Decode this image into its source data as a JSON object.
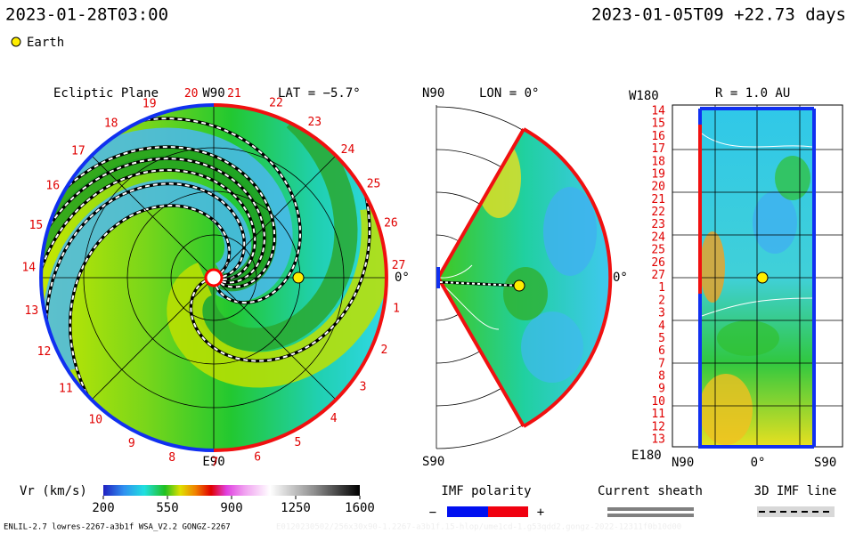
{
  "header": {
    "left": "2023-01-28T03:00",
    "right": "2023-01-05T09 +22.73 days"
  },
  "legend": {
    "earth": "Earth"
  },
  "ecliptic": {
    "title": "Ecliptic Plane",
    "lat": "LAT = −5.7°",
    "top": "W90",
    "bottom": "E90",
    "right": "0°",
    "days": [
      "20",
      "21",
      "22",
      "23",
      "24",
      "25",
      "26",
      "27",
      "1",
      "2",
      "3",
      "4",
      "5",
      "6",
      "7",
      "8",
      "9",
      "10",
      "11",
      "12",
      "13",
      "14",
      "15",
      "16",
      "17",
      "18",
      "19"
    ]
  },
  "meridian": {
    "top": "N90",
    "lon": "LON = 0°",
    "bottom": "S90",
    "right": "0°"
  },
  "radial": {
    "title": "R = 1.0 AU",
    "top": "W180",
    "bottom": "E180",
    "x_left": "N90",
    "x_mid": "0°",
    "x_right": "S90",
    "days": [
      "14",
      "15",
      "16",
      "17",
      "18",
      "19",
      "20",
      "21",
      "22",
      "23",
      "24",
      "25",
      "26",
      "27",
      "1",
      "2",
      "3",
      "4",
      "5",
      "6",
      "7",
      "8",
      "9",
      "10",
      "11",
      "12",
      "13"
    ]
  },
  "colorbar": {
    "label": "Vr (km/s)",
    "lim": [
      200,
      1600
    ],
    "ticks": [
      200,
      550,
      900,
      1250,
      1600
    ]
  },
  "polarity": {
    "title": "IMF polarity",
    "minus": "−",
    "plus": "+"
  },
  "sheath": {
    "title": "Current sheath"
  },
  "imf": {
    "title": "3D IMF line"
  },
  "footer": {
    "left": "ENLIL-2.7 lowres-2267-a3b1f WSA_V2.2 GONGZ-2267",
    "right": "E0120230502/256x30x90-1.2267-a3b1f.15-hlop/ume1cd-1.g53qdd2.gongz-2022-12311f0b10d00"
  }
}
